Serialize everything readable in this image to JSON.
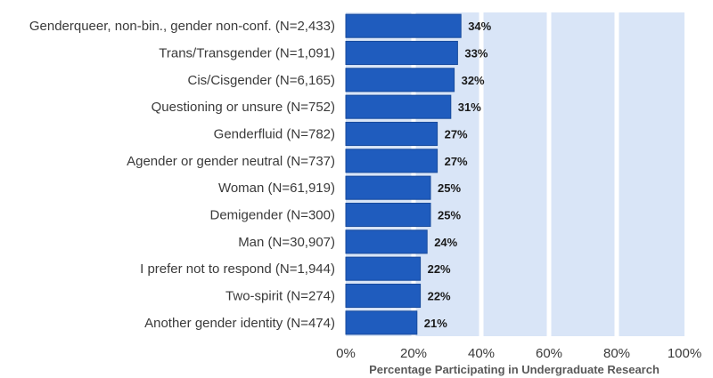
{
  "chart_data": {
    "type": "bar",
    "orientation": "horizontal",
    "title": "",
    "xlabel": "Percentage Participating in Undergraduate Research",
    "ylabel": "",
    "xlim": [
      0,
      100
    ],
    "x_ticks": [
      0,
      20,
      40,
      60,
      80,
      100
    ],
    "x_tick_labels": [
      "0%",
      "20%",
      "40%",
      "60%",
      "80%",
      "100%"
    ],
    "grid": true,
    "categories": [
      "Genderqueer, non-bin., gender non-conf. (N=2,433)",
      "Trans/Transgender (N=1,091)",
      "Cis/Cisgender (N=6,165)",
      "Questioning or unsure (N=752)",
      "Genderfluid (N=782)",
      "Agender or gender neutral (N=737)",
      "Woman (N=61,919)",
      "Demigender (N=300)",
      "Man (N=30,907)",
      "I prefer not to respond (N=1,944)",
      "Two-spirit (N=274)",
      "Another gender identity (N=474)"
    ],
    "values": [
      34,
      33,
      32,
      31,
      27,
      27,
      25,
      25,
      24,
      22,
      22,
      21
    ],
    "data_labels": [
      "34%",
      "33%",
      "32%",
      "31%",
      "27%",
      "27%",
      "25%",
      "25%",
      "24%",
      "22%",
      "22%",
      "21%"
    ],
    "colors": {
      "bar": "#1f5cbe",
      "bar_stroke": "#174a9c",
      "background_band": "#d9e5f7",
      "gridline": "#ffffff"
    }
  }
}
